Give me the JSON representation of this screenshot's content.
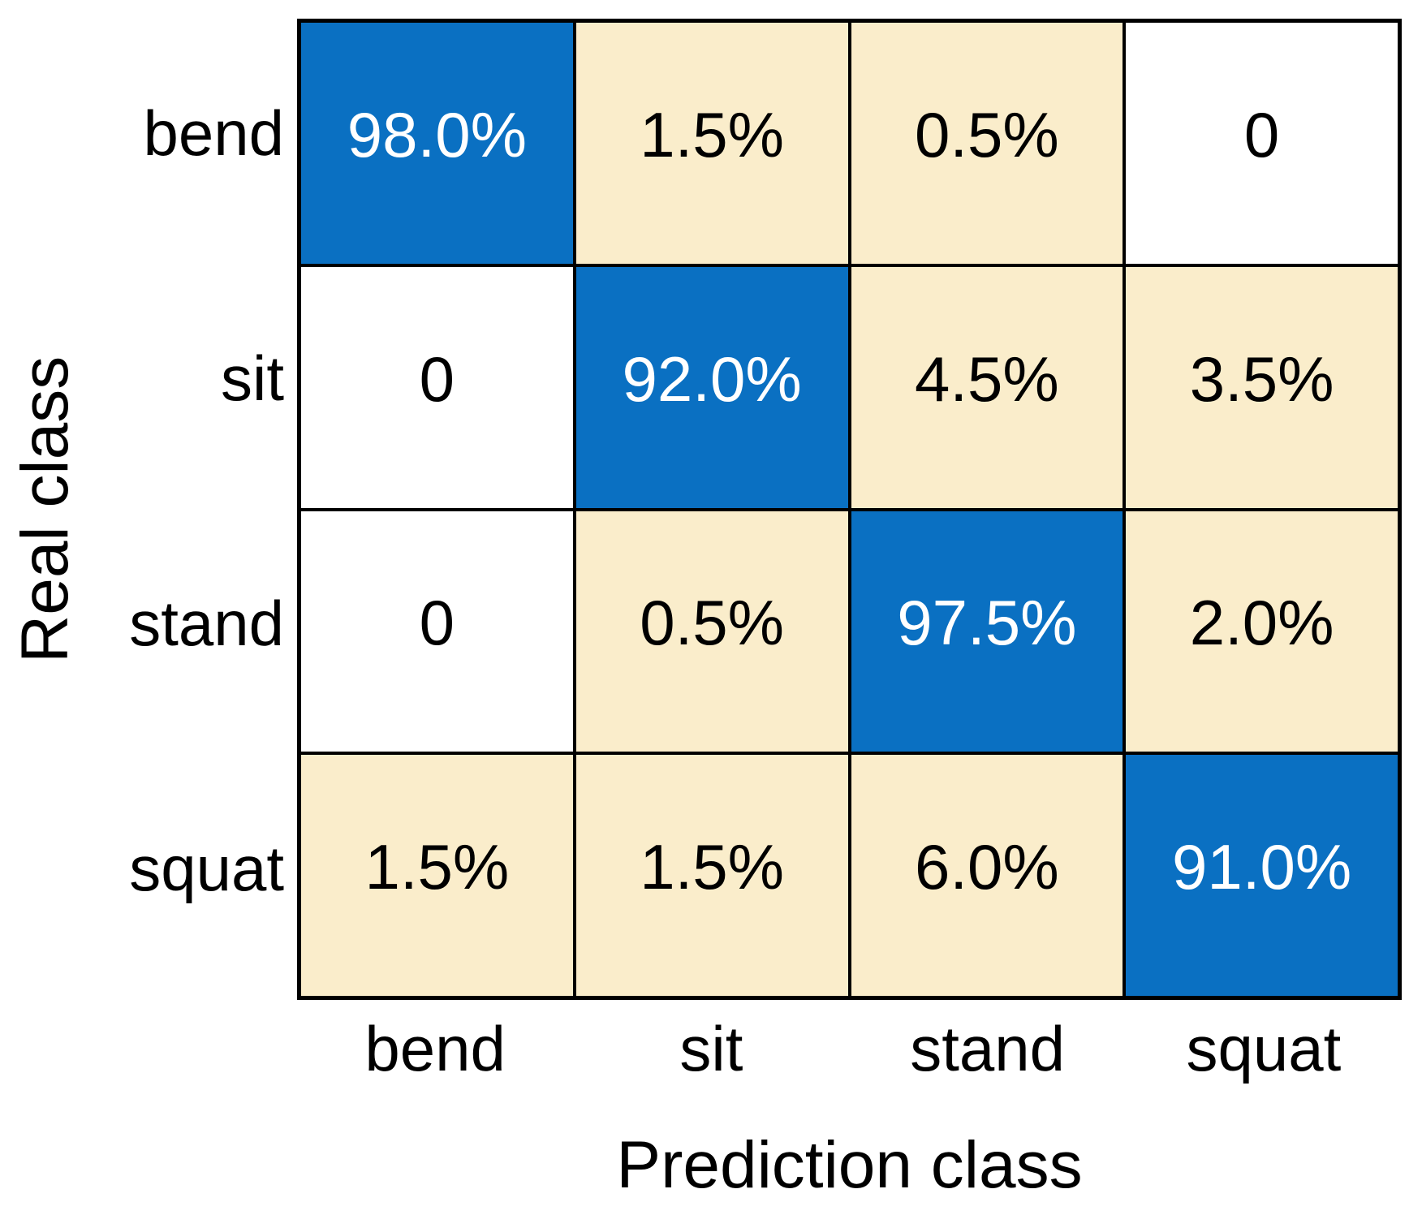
{
  "chart_data": {
    "type": "heatmap",
    "subtype": "confusion-matrix",
    "xlabel": "Prediction class",
    "ylabel": "Real class",
    "x_categories": [
      "bend",
      "sit",
      "stand",
      "squat"
    ],
    "y_categories": [
      "bend",
      "sit",
      "stand",
      "squat"
    ],
    "values_percent": [
      [
        98.0,
        1.5,
        0.5,
        0
      ],
      [
        0,
        92.0,
        4.5,
        3.5
      ],
      [
        0,
        0.5,
        97.5,
        2.0
      ],
      [
        1.5,
        1.5,
        6.0,
        91.0
      ]
    ],
    "cell_labels": [
      [
        "98.0%",
        "1.5%",
        "0.5%",
        "0"
      ],
      [
        "0",
        "92.0%",
        "4.5%",
        "3.5%"
      ],
      [
        "0",
        "0.5%",
        "97.5%",
        "2.0%"
      ],
      [
        "1.5%",
        "1.5%",
        "6.0%",
        "91.0%"
      ]
    ],
    "layout": {
      "grid_rows": 4,
      "grid_cols": 4,
      "legend": "none"
    },
    "colors": {
      "diagonal_fill": "#0A70C2",
      "offdiagonal_fill": "#FAEDCB",
      "zero_fill": "#FFFFFF",
      "diagonal_text": "#FFFFFF",
      "offdiagonal_text": "#000000",
      "grid_line": "#000000",
      "background": "#FFFFFF"
    }
  }
}
